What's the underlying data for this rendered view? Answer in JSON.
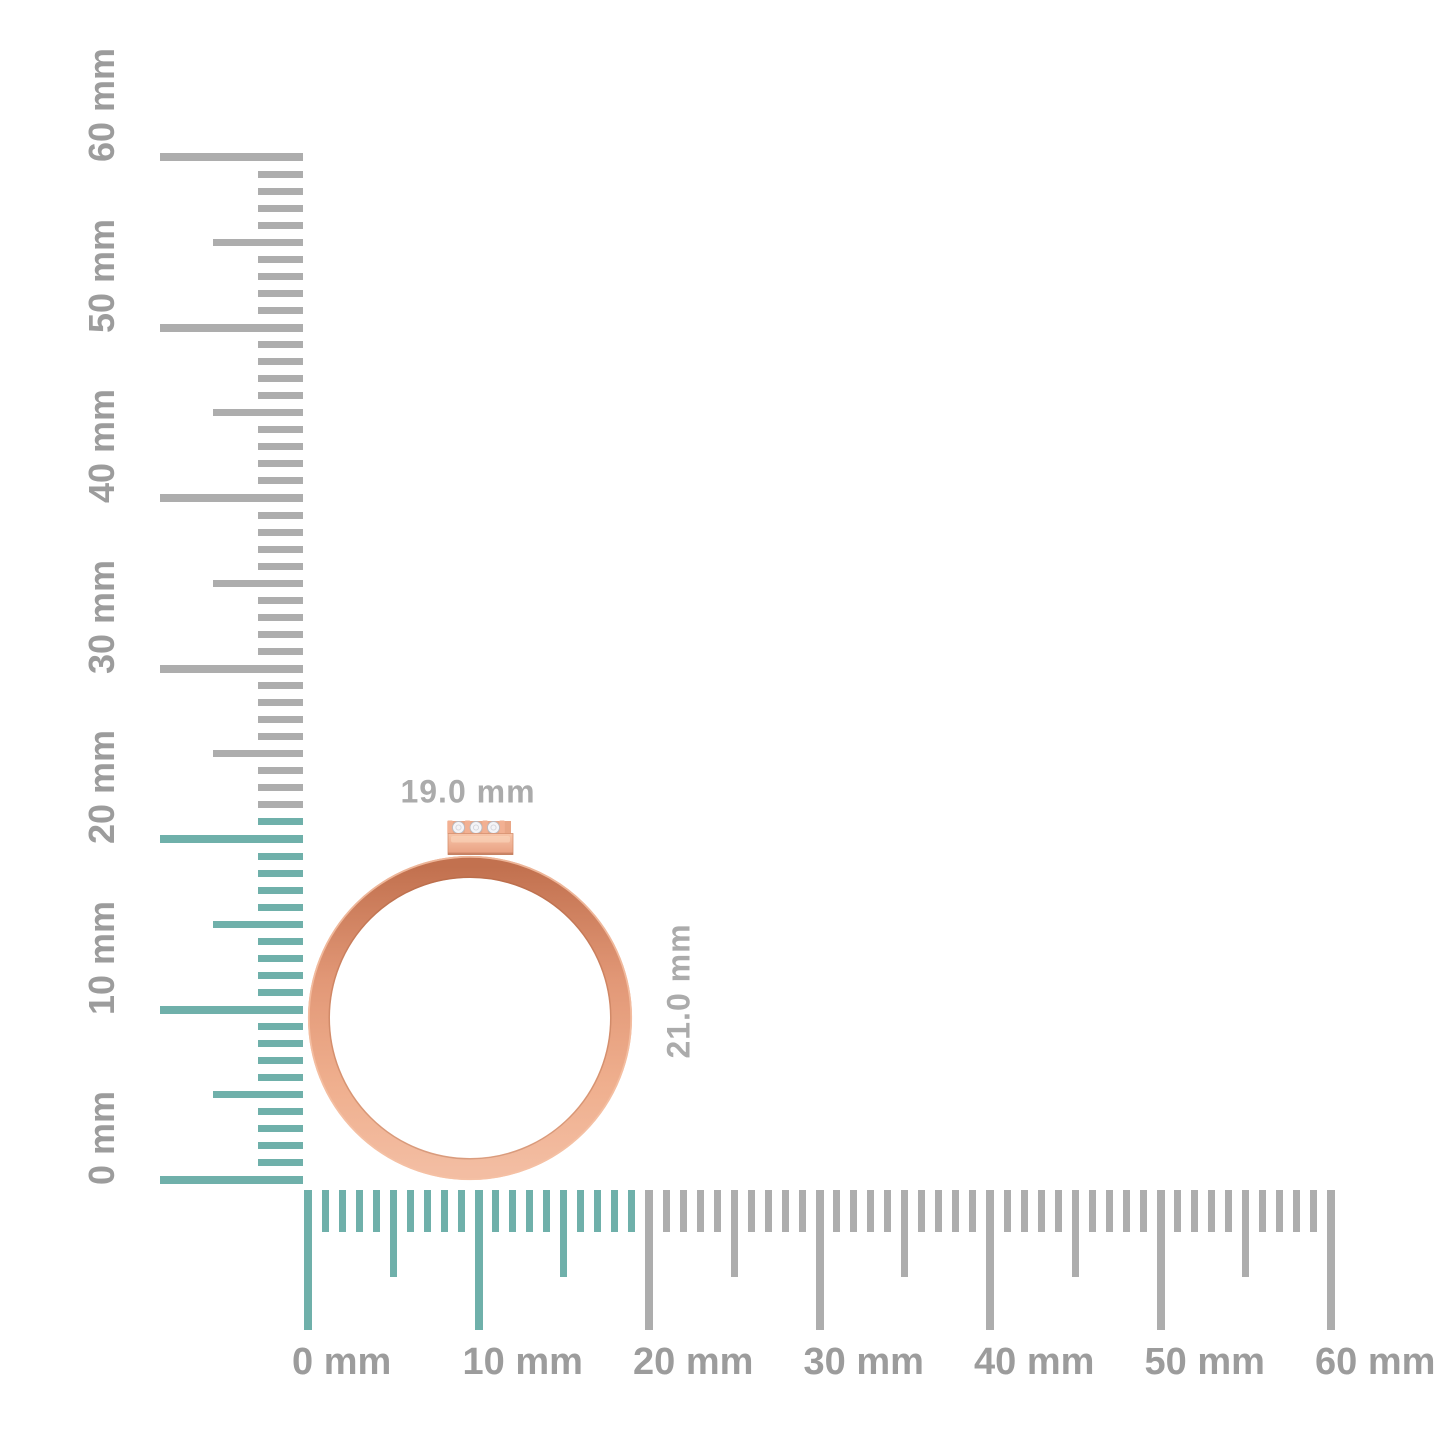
{
  "figure": {
    "object": "rose-gold ring with three small diamonds, side view, shown against millimeter rulers",
    "background": "#FFFFFF"
  },
  "dimensions": {
    "width_label": "19.0 mm",
    "height_label": "21.0 mm"
  },
  "rulers": {
    "unit": "mm",
    "max_mm": 60,
    "minor_step_mm": 1,
    "half_step_mm": 5,
    "major_step_mm": 10,
    "vertical": {
      "position": "left",
      "labels": [
        "0 mm",
        "10 mm",
        "20 mm",
        "30 mm",
        "40 mm",
        "50 mm",
        "60 mm"
      ],
      "highlight_to_mm": 21
    },
    "horizontal": {
      "position": "bottom",
      "labels": [
        "0 mm",
        "10 mm",
        "20 mm",
        "30 mm",
        "40 mm",
        "50 mm",
        "60 mm"
      ],
      "highlight_to_mm": 19
    },
    "colors": {
      "highlight_tick": "#6FB0AA",
      "tick": "#ADADAD",
      "label": "#9C9C9C"
    }
  },
  "ring": {
    "stone_count": 3,
    "colors": {
      "band_dark": "#C2714F",
      "band_mid": "#E29877",
      "band_light": "#F3BDA2",
      "edge_highlight": "#F5C1A5",
      "diamond": "#F4F4F7"
    }
  }
}
